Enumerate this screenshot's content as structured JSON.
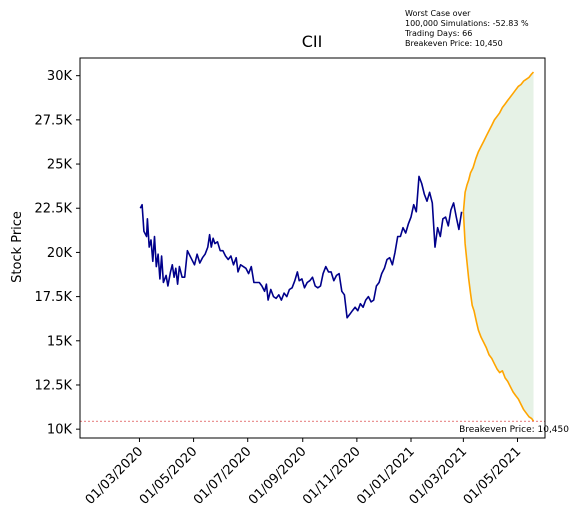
{
  "chart_data": {
    "type": "line",
    "title": "CII",
    "xlabel": "",
    "ylabel": "Stock Price",
    "ylim": [
      9500,
      31000
    ],
    "xlim": [
      "2019-12-25",
      "2021-06-01"
    ],
    "x_ticks": [
      "2020-03-01",
      "2020-05-01",
      "2020-07-01",
      "2020-09-01",
      "2020-11-01",
      "2021-01-01",
      "2021-03-01",
      "2021-05-01"
    ],
    "x_tick_labels": [
      "01/03/2020",
      "01/05/2020",
      "01/07/2020",
      "01/09/2020",
      "01/11/2020",
      "01/01/2021",
      "01/03/2021",
      "01/05/2021"
    ],
    "y_ticks": [
      10000,
      12500,
      15000,
      17500,
      20000,
      22500,
      25000,
      27500,
      30000
    ],
    "y_tick_labels": [
      "10K",
      "12.5K",
      "15K",
      "17.5K",
      "20K",
      "22.5K",
      "25K",
      "27.5K",
      "30K"
    ],
    "grid": false,
    "series": [
      {
        "role": "historical",
        "color": "#00008b",
        "points": [
          [
            "2020-03-02",
            22500
          ],
          [
            "2020-03-04",
            22700
          ],
          [
            "2020-03-06",
            21200
          ],
          [
            "2020-03-09",
            20900
          ],
          [
            "2020-03-10",
            21900
          ],
          [
            "2020-03-12",
            20300
          ],
          [
            "2020-03-14",
            20700
          ],
          [
            "2020-03-16",
            19500
          ],
          [
            "2020-03-18",
            20900
          ],
          [
            "2020-03-20",
            19200
          ],
          [
            "2020-03-22",
            19900
          ],
          [
            "2020-03-24",
            18500
          ],
          [
            "2020-03-26",
            19800
          ],
          [
            "2020-03-28",
            18300
          ],
          [
            "2020-03-31",
            18700
          ],
          [
            "2020-04-02",
            18100
          ],
          [
            "2020-04-05",
            18900
          ],
          [
            "2020-04-07",
            19300
          ],
          [
            "2020-04-09",
            18600
          ],
          [
            "2020-04-11",
            19100
          ],
          [
            "2020-04-13",
            18200
          ],
          [
            "2020-04-15",
            19200
          ],
          [
            "2020-04-18",
            18600
          ],
          [
            "2020-04-21",
            18600
          ],
          [
            "2020-04-24",
            20100
          ],
          [
            "2020-04-28",
            19700
          ],
          [
            "2020-05-02",
            19300
          ],
          [
            "2020-05-05",
            19900
          ],
          [
            "2020-05-08",
            19400
          ],
          [
            "2020-05-11",
            19700
          ],
          [
            "2020-05-14",
            19900
          ],
          [
            "2020-05-17",
            20300
          ],
          [
            "2020-05-19",
            21000
          ],
          [
            "2020-05-21",
            20300
          ],
          [
            "2020-05-23",
            20800
          ],
          [
            "2020-05-25",
            20500
          ],
          [
            "2020-05-28",
            20600
          ],
          [
            "2020-05-31",
            20100
          ],
          [
            "2020-06-03",
            20100
          ],
          [
            "2020-06-06",
            19800
          ],
          [
            "2020-06-09",
            19600
          ],
          [
            "2020-06-12",
            19800
          ],
          [
            "2020-06-15",
            19300
          ],
          [
            "2020-06-18",
            19700
          ],
          [
            "2020-06-20",
            18900
          ],
          [
            "2020-06-23",
            19300
          ],
          [
            "2020-06-26",
            19200
          ],
          [
            "2020-06-29",
            19100
          ],
          [
            "2020-07-02",
            18800
          ],
          [
            "2020-07-05",
            19200
          ],
          [
            "2020-07-08",
            18300
          ],
          [
            "2020-07-11",
            18300
          ],
          [
            "2020-07-14",
            18300
          ],
          [
            "2020-07-17",
            18100
          ],
          [
            "2020-07-20",
            17800
          ],
          [
            "2020-07-22",
            18200
          ],
          [
            "2020-07-24",
            17300
          ],
          [
            "2020-07-27",
            17900
          ],
          [
            "2020-07-30",
            17500
          ],
          [
            "2020-08-02",
            17400
          ],
          [
            "2020-08-05",
            17600
          ],
          [
            "2020-08-08",
            17300
          ],
          [
            "2020-08-11",
            17700
          ],
          [
            "2020-08-14",
            17500
          ],
          [
            "2020-08-17",
            17900
          ],
          [
            "2020-08-20",
            18000
          ],
          [
            "2020-08-23",
            18400
          ],
          [
            "2020-08-26",
            18900
          ],
          [
            "2020-08-28",
            18400
          ],
          [
            "2020-08-31",
            18500
          ],
          [
            "2020-09-03",
            18000
          ],
          [
            "2020-09-06",
            18300
          ],
          [
            "2020-09-09",
            18400
          ],
          [
            "2020-09-12",
            18600
          ],
          [
            "2020-09-15",
            18100
          ],
          [
            "2020-09-18",
            18000
          ],
          [
            "2020-09-21",
            18100
          ],
          [
            "2020-09-24",
            18800
          ],
          [
            "2020-09-27",
            19200
          ],
          [
            "2020-09-30",
            18900
          ],
          [
            "2020-10-03",
            18900
          ],
          [
            "2020-10-06",
            18400
          ],
          [
            "2020-10-09",
            18700
          ],
          [
            "2020-10-12",
            18800
          ],
          [
            "2020-10-15",
            17800
          ],
          [
            "2020-10-18",
            17600
          ],
          [
            "2020-10-21",
            16300
          ],
          [
            "2020-10-24",
            16500
          ],
          [
            "2020-10-27",
            16700
          ],
          [
            "2020-10-30",
            16900
          ],
          [
            "2020-11-02",
            16700
          ],
          [
            "2020-11-05",
            17100
          ],
          [
            "2020-11-08",
            16900
          ],
          [
            "2020-11-11",
            17300
          ],
          [
            "2020-11-14",
            17500
          ],
          [
            "2020-11-17",
            17200
          ],
          [
            "2020-11-20",
            17300
          ],
          [
            "2020-11-23",
            18100
          ],
          [
            "2020-11-26",
            18300
          ],
          [
            "2020-11-29",
            18800
          ],
          [
            "2020-12-02",
            19100
          ],
          [
            "2020-12-05",
            19600
          ],
          [
            "2020-12-08",
            19700
          ],
          [
            "2020-12-11",
            19300
          ],
          [
            "2020-12-14",
            20000
          ],
          [
            "2020-12-17",
            20900
          ],
          [
            "2020-12-20",
            20900
          ],
          [
            "2020-12-23",
            21400
          ],
          [
            "2020-12-26",
            21100
          ],
          [
            "2020-12-29",
            21600
          ],
          [
            "2021-01-01",
            22000
          ],
          [
            "2021-01-04",
            22700
          ],
          [
            "2021-01-07",
            22300
          ],
          [
            "2021-01-10",
            24300
          ],
          [
            "2021-01-13",
            23900
          ],
          [
            "2021-01-16",
            23300
          ],
          [
            "2021-01-19",
            22900
          ],
          [
            "2021-01-22",
            23400
          ],
          [
            "2021-01-25",
            22800
          ],
          [
            "2021-01-28",
            20300
          ],
          [
            "2021-01-31",
            21400
          ],
          [
            "2021-02-03",
            20900
          ],
          [
            "2021-02-06",
            21900
          ],
          [
            "2021-02-09",
            22000
          ],
          [
            "2021-02-12",
            21500
          ],
          [
            "2021-02-15",
            22400
          ],
          [
            "2021-02-18",
            22800
          ],
          [
            "2021-02-21",
            22000
          ],
          [
            "2021-02-24",
            21300
          ],
          [
            "2021-02-27",
            22300
          ]
        ]
      },
      {
        "role": "upper-projection",
        "color": "#ffa500",
        "points": [
          [
            "2021-03-01",
            22300
          ],
          [
            "2021-03-03",
            23400
          ],
          [
            "2021-03-05",
            23800
          ],
          [
            "2021-03-07",
            24100
          ],
          [
            "2021-03-09",
            24500
          ],
          [
            "2021-03-12",
            24800
          ],
          [
            "2021-03-15",
            25300
          ],
          [
            "2021-03-18",
            25700
          ],
          [
            "2021-03-21",
            26000
          ],
          [
            "2021-03-24",
            26300
          ],
          [
            "2021-03-27",
            26600
          ],
          [
            "2021-03-30",
            26900
          ],
          [
            "2021-04-02",
            27200
          ],
          [
            "2021-04-05",
            27500
          ],
          [
            "2021-04-08",
            27700
          ],
          [
            "2021-04-11",
            27900
          ],
          [
            "2021-04-14",
            28200
          ],
          [
            "2021-04-17",
            28400
          ],
          [
            "2021-04-20",
            28600
          ],
          [
            "2021-04-23",
            28800
          ],
          [
            "2021-04-26",
            29000
          ],
          [
            "2021-04-29",
            29200
          ],
          [
            "2021-05-02",
            29400
          ],
          [
            "2021-05-05",
            29500
          ],
          [
            "2021-05-08",
            29700
          ],
          [
            "2021-05-11",
            29800
          ],
          [
            "2021-05-14",
            29900
          ],
          [
            "2021-05-17",
            30100
          ],
          [
            "2021-05-19",
            30200
          ]
        ]
      },
      {
        "role": "lower-projection",
        "color": "#ffa500",
        "points": [
          [
            "2021-03-01",
            22300
          ],
          [
            "2021-03-03",
            20500
          ],
          [
            "2021-03-05",
            19500
          ],
          [
            "2021-03-07",
            18500
          ],
          [
            "2021-03-09",
            17700
          ],
          [
            "2021-03-11",
            17000
          ],
          [
            "2021-03-13",
            16700
          ],
          [
            "2021-03-16",
            16000
          ],
          [
            "2021-03-18",
            15600
          ],
          [
            "2021-03-21",
            15200
          ],
          [
            "2021-03-24",
            14900
          ],
          [
            "2021-03-27",
            14600
          ],
          [
            "2021-03-30",
            14200
          ],
          [
            "2021-04-02",
            14000
          ],
          [
            "2021-04-05",
            13700
          ],
          [
            "2021-04-08",
            13400
          ],
          [
            "2021-04-11",
            13200
          ],
          [
            "2021-04-14",
            13300
          ],
          [
            "2021-04-17",
            12900
          ],
          [
            "2021-04-20",
            12700
          ],
          [
            "2021-04-23",
            12400
          ],
          [
            "2021-04-26",
            12100
          ],
          [
            "2021-04-29",
            11900
          ],
          [
            "2021-05-02",
            11700
          ],
          [
            "2021-05-05",
            11400
          ],
          [
            "2021-05-08",
            11100
          ],
          [
            "2021-05-11",
            10900
          ],
          [
            "2021-05-14",
            10700
          ],
          [
            "2021-05-17",
            10600
          ],
          [
            "2021-05-19",
            10450
          ]
        ]
      }
    ],
    "fill_color": "#e6f2e6",
    "breakeven": {
      "value": 10450,
      "label": "Breakeven Price: 10,450",
      "color": "#d62728"
    },
    "annotation": [
      "Worst Case over",
      "100,000 Simulations: -52.83 %",
      "Trading Days: 66",
      "Breakeven Price: 10,450"
    ]
  }
}
